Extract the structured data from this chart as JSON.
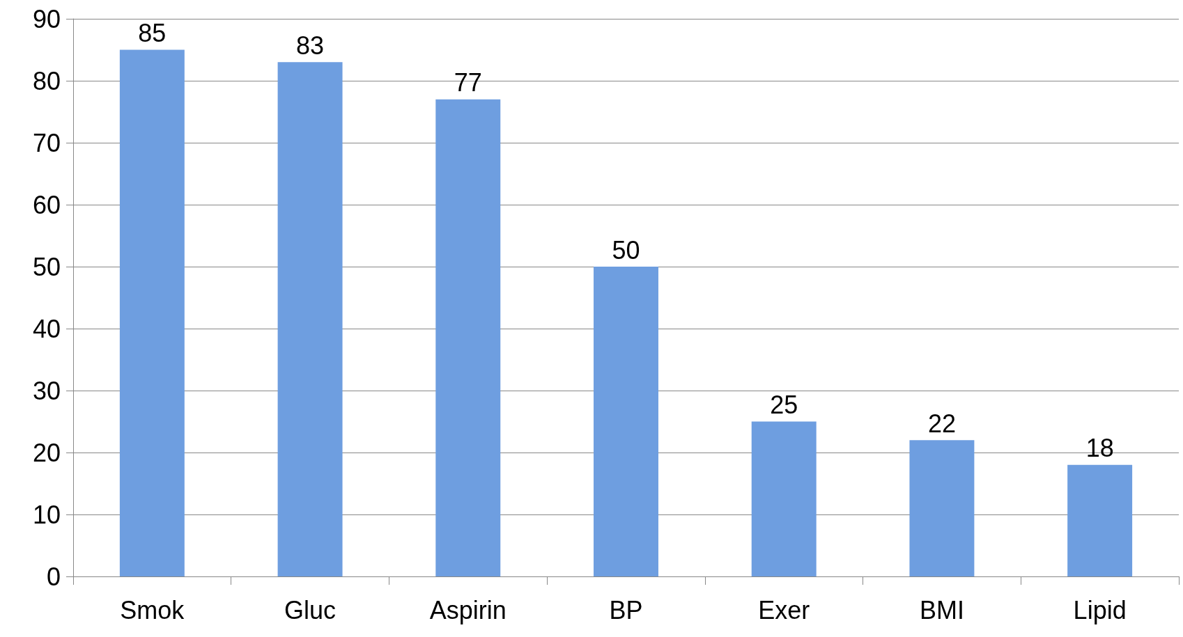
{
  "chart_data": {
    "type": "bar",
    "categories": [
      "Smok",
      "Gluc",
      "Aspirin",
      "BP",
      "Exer",
      "BMI",
      "Lipid"
    ],
    "values": [
      85,
      83,
      77,
      50,
      25,
      22,
      18
    ],
    "color": "#6e9ee0",
    "ylim": [
      0,
      90
    ],
    "yticks": [
      0,
      10,
      20,
      30,
      40,
      50,
      60,
      70,
      80,
      90
    ],
    "grid": "y",
    "data_labels": true
  }
}
